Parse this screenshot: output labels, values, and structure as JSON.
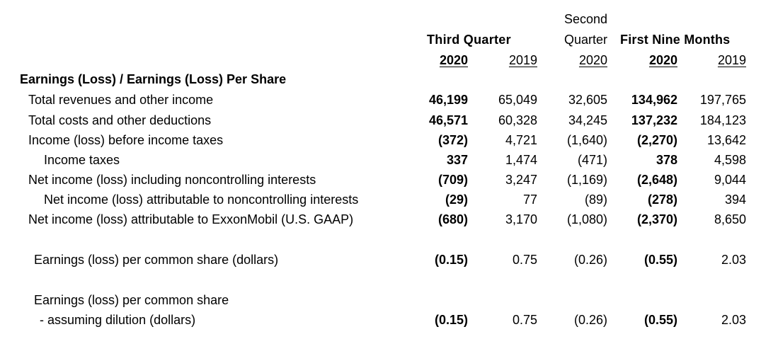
{
  "header": {
    "second_quarter_line1": "Second",
    "second_quarter_line2": "Quarter",
    "third_quarter": "Third Quarter",
    "first_nine_months": "First Nine Months",
    "years": [
      "2020",
      "2019",
      "2020",
      "2020",
      "2019"
    ]
  },
  "section_title": "Earnings (Loss) / Earnings (Loss) Per Share",
  "rows": [
    {
      "label": "Total revenues and other income",
      "values": [
        "46,199",
        "65,049",
        "32,605",
        "134,962",
        "197,765"
      ]
    },
    {
      "label": "Total costs and other deductions",
      "values": [
        "46,571",
        "60,328",
        "34,245",
        "137,232",
        "184,123"
      ]
    },
    {
      "label": "Income (loss) before income taxes",
      "values": [
        "(372)",
        "4,721",
        "(1,640)",
        "(2,270)",
        "13,642"
      ]
    },
    {
      "label": "Income taxes",
      "values": [
        "337",
        "1,474",
        "(471)",
        "378",
        "4,598"
      ]
    },
    {
      "label": "Net income (loss) including noncontrolling interests",
      "values": [
        "(709)",
        "3,247",
        "(1,169)",
        "(2,648)",
        "9,044"
      ]
    },
    {
      "label": "Net income (loss) attributable to noncontrolling interests",
      "values": [
        "(29)",
        "77",
        "(89)",
        "(278)",
        "394"
      ]
    },
    {
      "label": "Net income (loss) attributable to ExxonMobil (U.S. GAAP)",
      "values": [
        "(680)",
        "3,170",
        "(1,080)",
        "(2,370)",
        "8,650"
      ]
    },
    {
      "label": "Earnings (loss) per common share (dollars)",
      "values": [
        "(0.15)",
        "0.75",
        "(0.26)",
        "(0.55)",
        "2.03"
      ]
    },
    {
      "label_line1": "Earnings (loss) per common share",
      "label": "- assuming dilution (dollars)",
      "values": [
        "(0.15)",
        "0.75",
        "(0.26)",
        "(0.55)",
        "2.03"
      ]
    }
  ]
}
